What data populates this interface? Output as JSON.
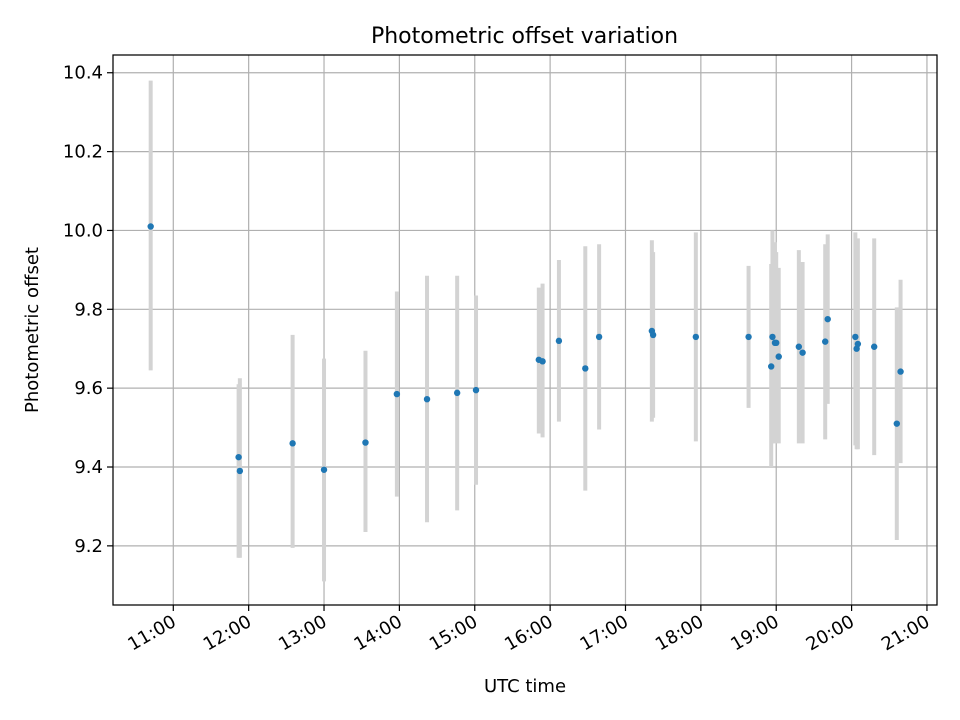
{
  "chart_data": {
    "type": "scatter",
    "title": "Photometric offset variation",
    "xlabel": "UTC time",
    "ylabel": "Photometric offset",
    "x_tick_labels": [
      "11:00",
      "12:00",
      "13:00",
      "14:00",
      "15:00",
      "16:00",
      "17:00",
      "18:00",
      "19:00",
      "20:00",
      "21:00"
    ],
    "y_tick_labels": [
      "9.2",
      "9.4",
      "9.6",
      "9.8",
      "10.0",
      "10.2",
      "10.4"
    ],
    "x_ticks": [
      "11:00",
      "12:00",
      "13:00",
      "14:00",
      "15:00",
      "16:00",
      "17:00",
      "18:00",
      "19:00",
      "20:00",
      "21:00"
    ],
    "y_ticks": [
      9.2,
      9.4,
      9.6,
      9.8,
      10.0,
      10.2,
      10.4
    ],
    "xlim": [
      "10:12",
      "21:08"
    ],
    "ylim": [
      9.05,
      10.445
    ],
    "grid": true,
    "legend": "none",
    "colors": {
      "point": "#1f77b4",
      "errorbar": "#d3d3d3",
      "grid": "#b0b0b0"
    },
    "series": [
      {
        "points": [
          {
            "x": "10:42",
            "y": 10.01,
            "err_low": 9.645,
            "err_high": 10.38
          },
          {
            "x": "11:52",
            "y": 9.425,
            "err_low": 9.17,
            "err_high": 9.61
          },
          {
            "x": "11:53",
            "y": 9.39,
            "err_low": 9.17,
            "err_high": 9.625
          },
          {
            "x": "12:35",
            "y": 9.46,
            "err_low": 9.195,
            "err_high": 9.735
          },
          {
            "x": "13:00",
            "y": 9.393,
            "err_low": 9.11,
            "err_high": 9.675
          },
          {
            "x": "13:33",
            "y": 9.462,
            "err_low": 9.235,
            "err_high": 9.695
          },
          {
            "x": "13:58",
            "y": 9.585,
            "err_low": 9.325,
            "err_high": 9.845
          },
          {
            "x": "14:22",
            "y": 9.572,
            "err_low": 9.26,
            "err_high": 9.885
          },
          {
            "x": "14:46",
            "y": 9.588,
            "err_low": 9.29,
            "err_high": 9.885
          },
          {
            "x": "15:01",
            "y": 9.595,
            "err_low": 9.355,
            "err_high": 9.835
          },
          {
            "x": "15:51",
            "y": 9.672,
            "err_low": 9.485,
            "err_high": 9.855
          },
          {
            "x": "15:54",
            "y": 9.668,
            "err_low": 9.475,
            "err_high": 9.865
          },
          {
            "x": "16:07",
            "y": 9.72,
            "err_low": 9.515,
            "err_high": 9.925
          },
          {
            "x": "16:28",
            "y": 9.65,
            "err_low": 9.34,
            "err_high": 9.96
          },
          {
            "x": "16:39",
            "y": 9.73,
            "err_low": 9.495,
            "err_high": 9.965
          },
          {
            "x": "17:21",
            "y": 9.745,
            "err_low": 9.515,
            "err_high": 9.975
          },
          {
            "x": "17:22",
            "y": 9.735,
            "err_low": 9.525,
            "err_high": 9.945
          },
          {
            "x": "17:56",
            "y": 9.73,
            "err_low": 9.465,
            "err_high": 9.995
          },
          {
            "x": "18:38",
            "y": 9.73,
            "err_low": 9.55,
            "err_high": 9.91
          },
          {
            "x": "18:56",
            "y": 9.655,
            "err_low": 9.4,
            "err_high": 9.915
          },
          {
            "x": "18:57",
            "y": 9.73,
            "err_low": 9.46,
            "err_high": 10.0
          },
          {
            "x": "18:59",
            "y": 9.715,
            "err_low": 9.46,
            "err_high": 9.97
          },
          {
            "x": "19:00",
            "y": 9.715,
            "err_low": 9.48,
            "err_high": 9.945
          },
          {
            "x": "19:02",
            "y": 9.68,
            "err_low": 9.46,
            "err_high": 9.905
          },
          {
            "x": "19:18",
            "y": 9.705,
            "err_low": 9.46,
            "err_high": 9.95
          },
          {
            "x": "19:21",
            "y": 9.69,
            "err_low": 9.46,
            "err_high": 9.92
          },
          {
            "x": "19:39",
            "y": 9.718,
            "err_low": 9.47,
            "err_high": 9.965
          },
          {
            "x": "19:41",
            "y": 9.775,
            "err_low": 9.56,
            "err_high": 9.99
          },
          {
            "x": "20:03",
            "y": 9.73,
            "err_low": 9.455,
            "err_high": 9.995
          },
          {
            "x": "20:04",
            "y": 9.7,
            "err_low": 9.445,
            "err_high": 9.955
          },
          {
            "x": "20:05",
            "y": 9.712,
            "err_low": 9.445,
            "err_high": 9.98
          },
          {
            "x": "20:18",
            "y": 9.705,
            "err_low": 9.43,
            "err_high": 9.98
          },
          {
            "x": "20:36",
            "y": 9.51,
            "err_low": 9.215,
            "err_high": 9.805
          },
          {
            "x": "20:39",
            "y": 9.642,
            "err_low": 9.41,
            "err_high": 9.875
          }
        ]
      }
    ]
  }
}
